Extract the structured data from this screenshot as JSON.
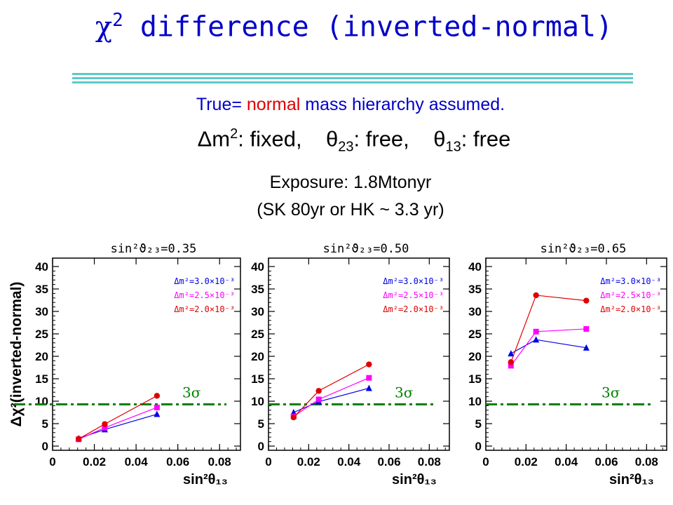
{
  "header": {
    "title_chi": "χ",
    "title_exp": "2",
    "title_text": " difference (inverted-normal)",
    "assumption_prefix": "True= ",
    "assumption_highlight": "normal",
    "assumption_suffix": " mass hierarchy assumed.",
    "params": {
      "dm_symbol": "Δm",
      "dm_exp": "2",
      "dm_text": ": fixed,",
      "t23_symbol": "θ",
      "t23_sub": "23",
      "t23_text": ": free,",
      "t13_symbol": "θ",
      "t13_sub": "13",
      "t13_text": ": free"
    },
    "exposure": "Exposure: 1.8Mtonyr",
    "equivalent": "(SK 80yr or HK ~ 3.3 yr)"
  },
  "colors": {
    "title": "#0000c8",
    "highlight": "#e00000",
    "rule": "#5fc8c8",
    "blue": "#0000e6",
    "magenta": "#ff00ff",
    "red": "#e00000",
    "threshold": "#008000"
  },
  "chart_data": [
    {
      "type": "line",
      "title": "sin²ϑ₂₃=0.35",
      "ylabel": "Δχ²(inverted-normal)",
      "xlabel": "sin²θ₁₃",
      "xlim": [
        0,
        0.09
      ],
      "ylim": [
        0,
        40
      ],
      "xticks": [
        "0",
        "0.02",
        "0.04",
        "0.06",
        "0.08"
      ],
      "yticks": [
        "0",
        "5",
        "10",
        "15",
        "20",
        "25",
        "30",
        "35",
        "40"
      ],
      "threshold": {
        "value": 9.3,
        "label": "3σ"
      },
      "series": [
        {
          "name": "Δm²=3.0×10⁻³",
          "color": "#0000e6",
          "marker": "triangle",
          "x": [
            0.0125,
            0.025,
            0.05
          ],
          "values": [
            1.7,
            3.7,
            7.1
          ]
        },
        {
          "name": "Δm²=2.5×10⁻³",
          "color": "#ff00ff",
          "marker": "square",
          "x": [
            0.0125,
            0.025,
            0.05
          ],
          "values": [
            1.5,
            4.1,
            8.6
          ]
        },
        {
          "name": "Δm²=2.0×10⁻³",
          "color": "#e00000",
          "marker": "circle",
          "x": [
            0.0125,
            0.025,
            0.05
          ],
          "values": [
            1.6,
            4.9,
            11.2
          ]
        }
      ]
    },
    {
      "type": "line",
      "title": "sin²ϑ₂₃=0.50",
      "ylabel": "",
      "xlabel": "sin²θ₁₃",
      "xlim": [
        0,
        0.09
      ],
      "ylim": [
        0,
        40
      ],
      "xticks": [
        "0",
        "0.02",
        "0.04",
        "0.06",
        "0.08"
      ],
      "yticks": [
        "0",
        "5",
        "10",
        "15",
        "20",
        "25",
        "30",
        "35",
        "40"
      ],
      "threshold": {
        "value": 9.3,
        "label": "3σ"
      },
      "series": [
        {
          "name": "Δm²=3.0×10⁻³",
          "color": "#0000e6",
          "marker": "triangle",
          "x": [
            0.0125,
            0.025,
            0.05
          ],
          "values": [
            7.5,
            9.9,
            12.9
          ]
        },
        {
          "name": "Δm²=2.5×10⁻³",
          "color": "#ff00ff",
          "marker": "square",
          "x": [
            0.0125,
            0.025,
            0.05
          ],
          "values": [
            6.6,
            10.4,
            15.2
          ]
        },
        {
          "name": "Δm²=2.0×10⁻³",
          "color": "#e00000",
          "marker": "circle",
          "x": [
            0.0125,
            0.025,
            0.05
          ],
          "values": [
            6.4,
            12.3,
            18.2
          ]
        }
      ]
    },
    {
      "type": "line",
      "title": "sin²ϑ₂₃=0.65",
      "ylabel": "",
      "xlabel": "sin²θ₁₃",
      "xlim": [
        0,
        0.09
      ],
      "ylim": [
        0,
        40
      ],
      "xticks": [
        "0",
        "0.02",
        "0.04",
        "0.06",
        "0.08"
      ],
      "yticks": [
        "0",
        "5",
        "10",
        "15",
        "20",
        "25",
        "30",
        "35",
        "40"
      ],
      "threshold": {
        "value": 9.3,
        "label": "3σ"
      },
      "series": [
        {
          "name": "Δm²=3.0×10⁻³",
          "color": "#0000e6",
          "marker": "triangle",
          "x": [
            0.0125,
            0.025,
            0.05
          ],
          "values": [
            20.6,
            23.7,
            21.9
          ]
        },
        {
          "name": "Δm²=2.5×10⁻³",
          "color": "#ff00ff",
          "marker": "square",
          "x": [
            0.0125,
            0.025,
            0.05
          ],
          "values": [
            17.9,
            25.5,
            26.1
          ]
        },
        {
          "name": "Δm²=2.0×10⁻³",
          "color": "#e00000",
          "marker": "circle",
          "x": [
            0.0125,
            0.025,
            0.05
          ],
          "values": [
            18.7,
            33.6,
            32.4
          ]
        }
      ]
    }
  ]
}
